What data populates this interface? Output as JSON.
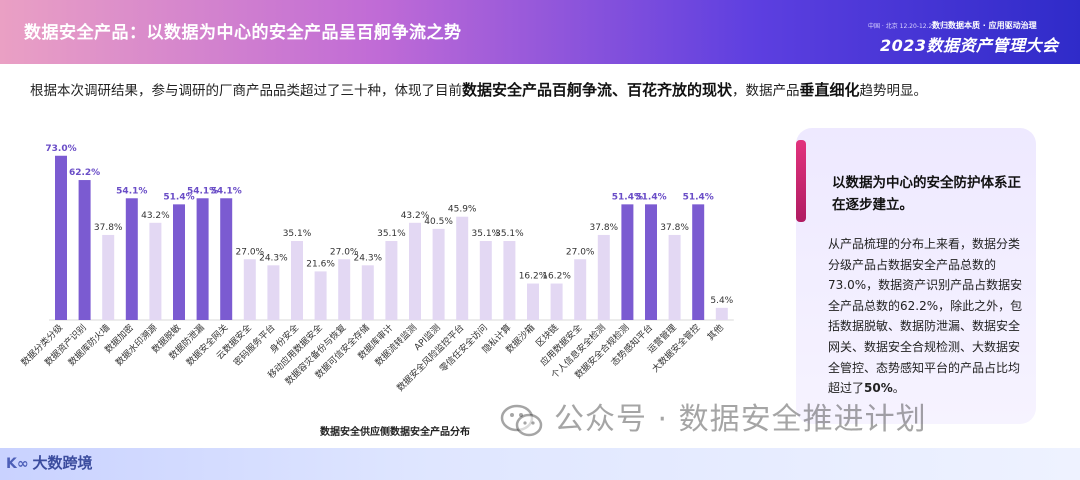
{
  "header": {
    "title": "数据安全产品：以数据为中心的安全产品呈百舸争流之势",
    "conference_small": "中国 · 北京  12.20-12.21",
    "conference_slogan": "数归数据本质 · 应用驱动治理",
    "conference_name": "2023数据资产管理大会"
  },
  "intro": {
    "part1": "根据本次调研结果，参与调研的厂商产品品类超过了三十种，体现了目前",
    "bold1": "数据安全产品百舸争流、百花齐放的现状",
    "part2": "，数据产品",
    "bold2": "垂直细化",
    "part3": "趋势明显。"
  },
  "sidebar": {
    "heading": "以数据为中心的安全防护体系正在逐步建立。",
    "body": "从产品梳理的分布上来看，数据分类分级产品占数据安全产品总数的73.0%，数据资产识别产品占数据安全产品总数的62.2%，除此之外，包括数据脱敏、数据防泄漏、数据安全网关、数据安全合规检测、大数据安全管控、态势感知平台的产品占比均超过了",
    "body_bold": "50%",
    "body_end": "。"
  },
  "footer": {
    "logo_mark": "大数",
    "logo_text": "大数跨境",
    "watermark": "公众号 · 数据安全推进计划"
  },
  "colors": {
    "highlight": "#7b5bd1",
    "normal": "#e3d8f3",
    "label_highlight": "#6a4dc7",
    "label_normal": "#333333"
  },
  "chart_data": {
    "type": "bar",
    "title": "数据安全供应侧数据安全产品分布",
    "unit": "%",
    "ylim": [
      0,
      80
    ],
    "categories": [
      "数据分类分级",
      "数据资产识别",
      "数据库防火墙",
      "数据加密",
      "数据水印溯源",
      "数据脱敏",
      "数据防泄漏",
      "数据安全网关",
      "云数据安全",
      "密码服务平台",
      "身份安全",
      "移动应用数据安全",
      "数据容灾备份与恢复",
      "数据可信安全存储",
      "数据库审计",
      "数据流转监测",
      "API监测",
      "数据安全风险监控平台",
      "零信任安全访问",
      "隐私计算",
      "数据沙箱",
      "区块链",
      "应用数据安全",
      "个人信息安全检测",
      "数据安全合规检测",
      "态势感知平台",
      "运营管理",
      "大数据安全管控",
      "其他"
    ],
    "values": [
      73.0,
      62.2,
      37.8,
      54.1,
      43.2,
      51.4,
      54.1,
      54.1,
      27.0,
      24.3,
      35.1,
      21.6,
      27.0,
      24.3,
      35.1,
      43.2,
      40.5,
      45.9,
      35.1,
      35.1,
      16.2,
      16.2,
      27.0,
      37.8,
      51.4,
      51.4,
      37.8,
      51.4,
      5.4
    ],
    "highlighted": [
      true,
      true,
      false,
      true,
      false,
      true,
      true,
      true,
      false,
      false,
      false,
      false,
      false,
      false,
      false,
      false,
      false,
      false,
      false,
      false,
      false,
      false,
      false,
      false,
      true,
      true,
      false,
      true,
      false
    ]
  }
}
